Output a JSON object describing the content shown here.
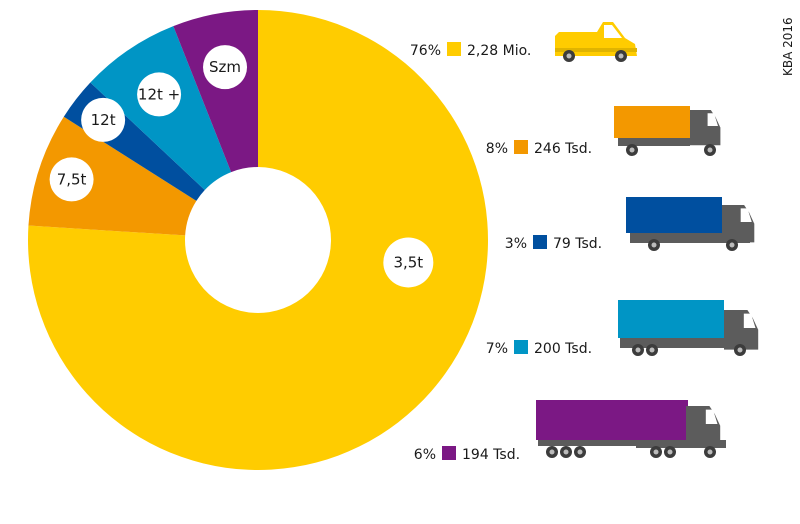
{
  "source": "KBA 2016",
  "chart_data": {
    "type": "pie",
    "donut": true,
    "title": "",
    "categories": [
      "3,5t",
      "7,5t",
      "12t",
      "12t +",
      "Szm"
    ],
    "values": [
      76,
      8,
      3,
      7,
      6
    ],
    "value_unit": "%",
    "counts": [
      "2,28 Mio.",
      "246 Tsd.",
      "79 Tsd.",
      "200 Tsd.",
      "194 Tsd."
    ],
    "percent_labels": [
      "76%",
      "8%",
      "3%",
      "7%",
      "6%"
    ],
    "colors": [
      "#ffcc00",
      "#f39800",
      "#004f9f",
      "#0095c5",
      "#7b1884"
    ],
    "vehicle_icons": [
      "van-icon",
      "truck-icon",
      "truck-icon",
      "truck-icon",
      "semi-trailer-truck-icon"
    ]
  }
}
